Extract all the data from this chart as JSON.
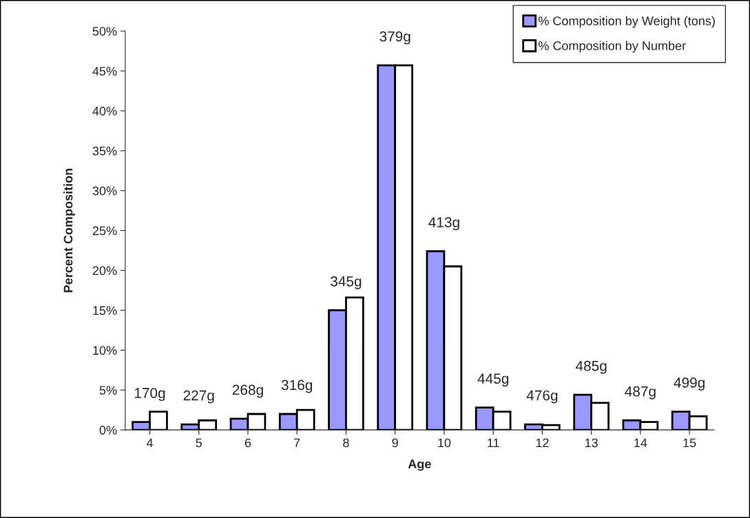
{
  "chart_data": {
    "type": "bar",
    "xlabel": "Age",
    "ylabel": "Percent Composition",
    "categories": [
      "4",
      "5",
      "6",
      "7",
      "8",
      "9",
      "10",
      "11",
      "12",
      "13",
      "14",
      "15"
    ],
    "series": [
      {
        "name": "% Composition by Weight (tons)",
        "color": "#9999ff",
        "values": [
          1.0,
          0.7,
          1.4,
          2.0,
          15.0,
          45.7,
          22.4,
          2.8,
          0.7,
          4.4,
          1.2,
          2.3
        ]
      },
      {
        "name": "% Composition by Number",
        "color": "#ffffff",
        "values": [
          2.3,
          1.2,
          2.0,
          2.5,
          16.6,
          45.7,
          20.5,
          2.3,
          0.6,
          3.4,
          1.0,
          1.7
        ]
      }
    ],
    "ylim": [
      0,
      50
    ],
    "yticks": [
      {
        "value": 0,
        "label": "0%"
      },
      {
        "value": 5,
        "label": "5%"
      },
      {
        "value": 10,
        "label": "10%"
      },
      {
        "value": 15,
        "label": "15%"
      },
      {
        "value": 20,
        "label": "20%"
      },
      {
        "value": 25,
        "label": "25%"
      },
      {
        "value": 30,
        "label": "30%"
      },
      {
        "value": 35,
        "label": "35%"
      },
      {
        "value": 40,
        "label": "40%"
      },
      {
        "value": 45,
        "label": "45%"
      },
      {
        "value": 50,
        "label": "50%"
      }
    ],
    "annotations": [
      {
        "text": "170g",
        "x": "4",
        "y": 1.0
      },
      {
        "text": "227g",
        "x": "5",
        "y": 0.7
      },
      {
        "text": "268g",
        "x": "6",
        "y": 1.4
      },
      {
        "text": "316g",
        "x": "7",
        "y": 2.0
      },
      {
        "text": "345g",
        "x": "8",
        "y": 15.0
      },
      {
        "text": "379g",
        "x": "9",
        "y": 45.7
      },
      {
        "text": "413g",
        "x": "10",
        "y": 22.4
      },
      {
        "text": "445g",
        "x": "11",
        "y": 2.8
      },
      {
        "text": "476g",
        "x": "12",
        "y": 0.7
      },
      {
        "text": "485g",
        "x": "13",
        "y": 4.4
      },
      {
        "text": "487g",
        "x": "14",
        "y": 1.2
      },
      {
        "text": "499g",
        "x": "15",
        "y": 2.3
      }
    ],
    "legend": "top right",
    "grid": false
  }
}
